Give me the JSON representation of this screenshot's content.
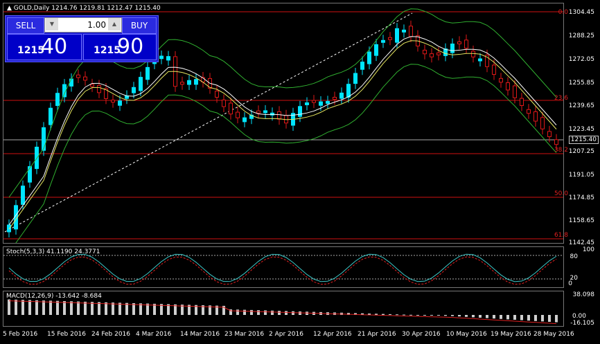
{
  "header": {
    "title": "▲ GOLD,Daily  1214.76 1219.81 1212.47 1215.40"
  },
  "trade_panel": {
    "sell_label": "SELL",
    "buy_label": "BUY",
    "lot_value": "1.00",
    "sell_prefix": "1215",
    "sell_big": "40",
    "buy_prefix": "1215",
    "buy_big": "90"
  },
  "price_axis": [
    "1304.45",
    "1288.25",
    "1272.05",
    "1255.85",
    "1239.65",
    "1223.45",
    "1207.25",
    "1191.05",
    "1174.85",
    "1158.65",
    "1142.45"
  ],
  "current_price": "1215.40",
  "fib_levels": [
    "0.0",
    "23.6",
    "38.2",
    "50.0",
    "61.8"
  ],
  "stoch": {
    "label": "Stoch(5,3,3) 41.1190 24.3771",
    "levels": [
      "100",
      "80",
      "20",
      "0"
    ]
  },
  "macd": {
    "label": "MACD(12,26,9) -13.642 -8.684",
    "levels": [
      "38.098",
      "0.00",
      "-16.105"
    ]
  },
  "dates": [
    "5 Feb 2016",
    "15 Feb 2016",
    "24 Feb 2016",
    "4 Mar 2016",
    "14 Mar 2016",
    "23 Mar 2016",
    "2 Apr 2016",
    "12 Apr 2016",
    "21 Apr 2016",
    "30 Apr 2016",
    "10 May 2016",
    "19 May 2016",
    "28 May 2016"
  ],
  "colors": {
    "bull": "#00e5ff",
    "bear": "#e01818",
    "fib": "#d01010",
    "band": "#30b030"
  }
}
